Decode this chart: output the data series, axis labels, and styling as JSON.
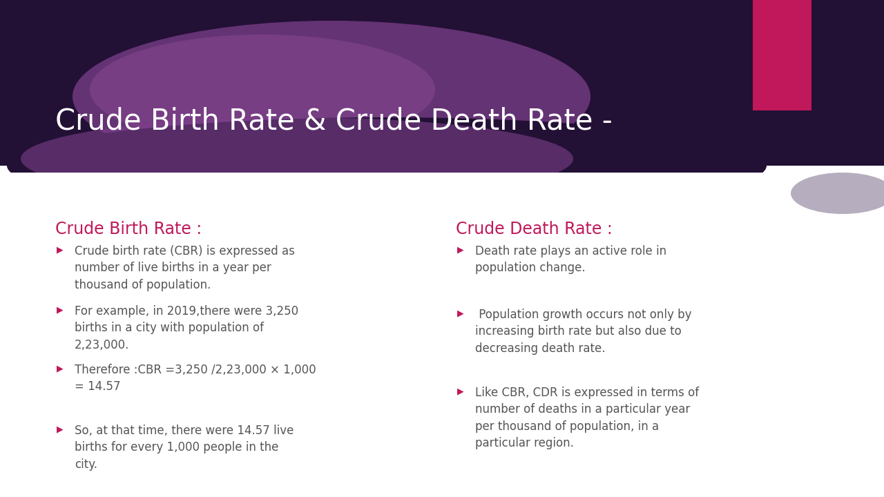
{
  "title": "Crude Birth Rate & Crude Death Rate -",
  "title_color": "#ffffff",
  "bg_color": "#ffffff",
  "header_dark": "#231035",
  "header_mid": "#5c2870",
  "header_light": "#7b3f8a",
  "pink_accent": "#c0185a",
  "shadow_color": "#7a6a8a",
  "section_title_color": "#c0185a",
  "bullet_color": "#c0185a",
  "text_color": "#555555",
  "left_title": "Crude Birth Rate :",
  "right_title": "Crude Death Rate :",
  "left_bullets": [
    "Crude birth rate (CBR) is expressed as\nnumber of live births in a year per\nthousand of population.",
    "For example, in 2019,there were 3,250\nbirths in a city with population of\n2,23,000.",
    "Therefore :CBR =3,250 /2,23,000 × 1,000\n= 14.57",
    "So, at that time, there were 14.57 live\nbirths for every 1,000 people in the\ncity."
  ],
  "right_bullets": [
    "Death rate plays an active role in\npopulation change.",
    " Population growth occurs not only by\nincreasing birth rate but also due to\ndecreasing death rate.",
    "Like CBR, CDR is expressed in terms of\nnumber of deaths in a particular year\nper thousand of population, in a\nparticular region."
  ]
}
